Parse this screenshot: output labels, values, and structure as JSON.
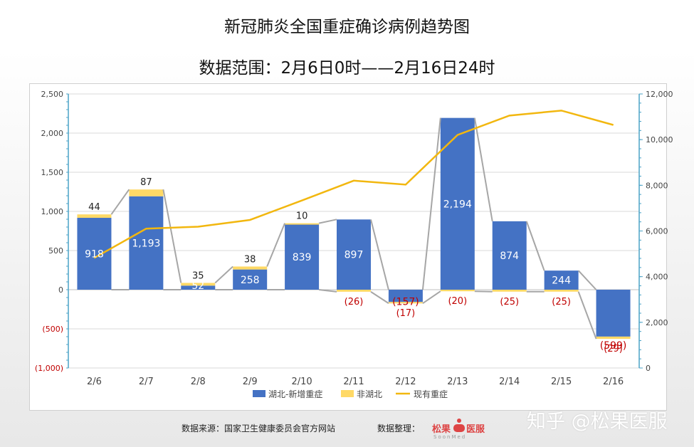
{
  "titles": {
    "main": "新冠肺炎全国重症确诊病例趋势图",
    "range": "数据范围：2月6日0时——2月16日24时"
  },
  "footer": {
    "source": "数据来源：国家卫生健康委员会官方网站",
    "curator_label": "数据整理：",
    "logo_text": "松果",
    "logo_text2": "医服",
    "logo_sub": "SoonMed",
    "watermark": "知乎 @松果医服"
  },
  "chart_data": {
    "type": "bar",
    "categories": [
      "2/6",
      "2/7",
      "2/8",
      "2/9",
      "2/10",
      "2/11",
      "2/12",
      "2/13",
      "2/14",
      "2/15",
      "2/16"
    ],
    "series": [
      {
        "name": "湖北-新增重症",
        "type": "bar",
        "color": "#4472c4",
        "values": [
          918,
          1193,
          52,
          258,
          839,
          897,
          -157,
          2194,
          874,
          244,
          -599
        ],
        "labels": [
          "918",
          "1,193",
          "52",
          "258",
          "839",
          "897",
          "(157)",
          "2,194",
          "874",
          "244",
          "(599)"
        ]
      },
      {
        "name": "非湖北",
        "type": "bar",
        "color": "#ffd966",
        "values": [
          44,
          87,
          35,
          38,
          10,
          -26,
          -17,
          -20,
          -25,
          -25,
          -29
        ],
        "labels": [
          "44",
          "87",
          "35",
          "38",
          "10",
          "(26)",
          "(17)",
          "(20)",
          "(25)",
          "(25)",
          "(29)"
        ]
      },
      {
        "name": "现有重症",
        "type": "line",
        "axis": "right",
        "color": "#f2b70f",
        "values": [
          4821,
          6101,
          6188,
          6484,
          7333,
          8204,
          8030,
          10204,
          11053,
          11272,
          10644
        ]
      }
    ],
    "y_left": {
      "min": -1000,
      "max": 2500,
      "step": 500,
      "tick_labels": [
        "(1,000)",
        "(500)",
        "0",
        "500",
        "1,000",
        "1,500",
        "2,000",
        "2,500"
      ]
    },
    "y_right": {
      "min": 0,
      "max": 12000,
      "step": 2000,
      "tick_labels": [
        "0",
        "2,000",
        "4,000",
        "6,000",
        "8,000",
        "10,000",
        "12,000"
      ]
    },
    "colors": {
      "negative_label": "#c00000",
      "connector": "#a6a6a6",
      "grid": "#d9d9d9",
      "axis": "#4ba3c7"
    },
    "legend_position": "bottom",
    "grid": true
  }
}
